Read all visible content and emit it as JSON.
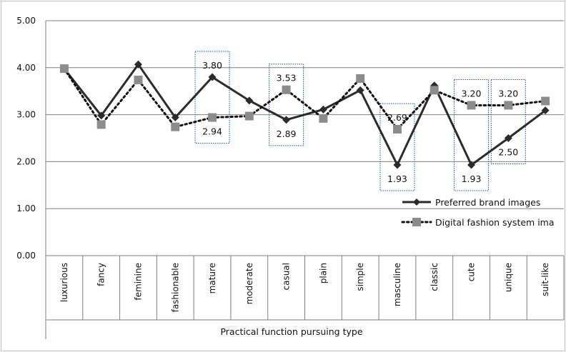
{
  "chart_data": {
    "type": "line",
    "xlabel": "Practical function pursuing type",
    "ylabel": "",
    "ylim": [
      0,
      5
    ],
    "yticks": [
      "0.00",
      "1.00",
      "2.00",
      "3.00",
      "4.00",
      "5.00"
    ],
    "grid": true,
    "legend_position": "right",
    "categories": [
      "luxurious",
      "fancy",
      "feminine",
      "fashionable",
      "mature",
      "moderate",
      "casual",
      "plain",
      "simple",
      "masculine",
      "classic",
      "cute",
      "unique",
      "suit-like"
    ],
    "series": [
      {
        "name": "Preferred brand images",
        "style": "solid-diamond",
        "color": "#2b2b2b",
        "values": [
          3.98,
          2.98,
          4.07,
          2.94,
          3.8,
          3.3,
          2.89,
          3.11,
          3.52,
          1.93,
          3.62,
          1.93,
          2.5,
          3.09
        ]
      },
      {
        "name": "Digital fashion system ima",
        "style": "dotted-square",
        "color": "#8c8c8c",
        "values": [
          3.98,
          2.79,
          3.74,
          2.74,
          2.94,
          2.97,
          3.53,
          2.92,
          3.77,
          2.69,
          3.52,
          3.2,
          3.2,
          3.29
        ]
      }
    ],
    "annotations": [
      {
        "category": "mature",
        "labels": [
          "3.80",
          "2.94"
        ]
      },
      {
        "category": "casual",
        "labels": [
          "3.53",
          "2.89"
        ]
      },
      {
        "category": "masculine",
        "labels": [
          "2.69",
          "1.93"
        ]
      },
      {
        "category": "cute",
        "labels": [
          "3.20",
          "1.93"
        ]
      },
      {
        "category": "unique",
        "labels": [
          "3.20",
          "2.50"
        ]
      }
    ]
  }
}
